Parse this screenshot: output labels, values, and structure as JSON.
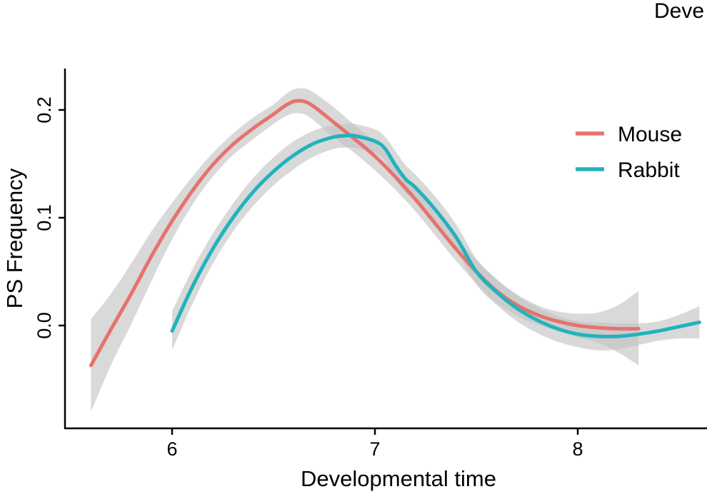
{
  "chart_data": {
    "type": "line",
    "title": "Deve",
    "xlabel": "Developmental time",
    "ylabel": "PS Frequency",
    "xlim": [
      5.47,
      8.63
    ],
    "ylim": [
      -0.094,
      0.235
    ],
    "xticks": [
      6,
      7,
      8
    ],
    "xtick_labels": [
      "6",
      "7",
      "8"
    ],
    "yticks": [
      0.0,
      0.1,
      0.2
    ],
    "ytick_labels": [
      "0.0",
      "0.1",
      "0.2"
    ],
    "grid": false,
    "legend_position": "right",
    "series": [
      {
        "name": "Mouse",
        "color": "#E5736C",
        "x": [
          5.6,
          5.7,
          5.8,
          5.9,
          6.0,
          6.1,
          6.2,
          6.3,
          6.4,
          6.5,
          6.55,
          6.6,
          6.65,
          6.7,
          6.8,
          6.9,
          7.0,
          7.1,
          7.2,
          7.3,
          7.4,
          7.5,
          7.6,
          7.7,
          7.8,
          7.9,
          8.0,
          8.1,
          8.2,
          8.3
        ],
        "y": [
          -0.037,
          -0.003,
          0.03,
          0.065,
          0.097,
          0.125,
          0.149,
          0.168,
          0.183,
          0.196,
          0.203,
          0.208,
          0.208,
          0.203,
          0.188,
          0.173,
          0.157,
          0.138,
          0.117,
          0.094,
          0.071,
          0.05,
          0.032,
          0.019,
          0.01,
          0.004,
          0.0,
          -0.002,
          -0.003,
          -0.003
        ],
        "ci_upper": [
          0.006,
          0.03,
          0.058,
          0.088,
          0.114,
          0.138,
          0.16,
          0.178,
          0.193,
          0.205,
          0.213,
          0.219,
          0.22,
          0.216,
          0.202,
          0.186,
          0.17,
          0.15,
          0.128,
          0.105,
          0.082,
          0.061,
          0.043,
          0.029,
          0.019,
          0.013,
          0.011,
          0.012,
          0.019,
          0.032
        ],
        "ci_lower": [
          -0.08,
          -0.036,
          0.002,
          0.042,
          0.08,
          0.112,
          0.138,
          0.158,
          0.173,
          0.187,
          0.193,
          0.197,
          0.196,
          0.19,
          0.174,
          0.16,
          0.144,
          0.126,
          0.106,
          0.083,
          0.06,
          0.039,
          0.021,
          0.009,
          0.001,
          -0.005,
          -0.011,
          -0.016,
          -0.025,
          -0.037
        ]
      },
      {
        "name": "Rabbit",
        "color": "#22B2BD",
        "x": [
          6.0,
          6.1,
          6.2,
          6.3,
          6.4,
          6.5,
          6.6,
          6.7,
          6.8,
          6.85,
          6.9,
          7.0,
          7.05,
          7.1,
          7.15,
          7.2,
          7.3,
          7.4,
          7.5,
          7.6,
          7.7,
          7.8,
          7.9,
          8.0,
          8.1,
          8.2,
          8.3,
          8.4,
          8.5,
          8.6
        ],
        "y": [
          -0.005,
          0.036,
          0.071,
          0.1,
          0.124,
          0.143,
          0.158,
          0.169,
          0.175,
          0.176,
          0.176,
          0.171,
          0.164,
          0.149,
          0.136,
          0.128,
          0.107,
          0.082,
          0.05,
          0.031,
          0.016,
          0.005,
          -0.003,
          -0.008,
          -0.01,
          -0.01,
          -0.008,
          -0.005,
          -0.001,
          0.003
        ],
        "ci_upper": [
          0.013,
          0.052,
          0.085,
          0.113,
          0.137,
          0.156,
          0.171,
          0.181,
          0.186,
          0.187,
          0.187,
          0.182,
          0.175,
          0.162,
          0.149,
          0.14,
          0.119,
          0.094,
          0.062,
          0.043,
          0.028,
          0.017,
          0.009,
          0.004,
          0.003,
          0.002,
          0.002,
          0.004,
          0.01,
          0.018
        ],
        "ci_lower": [
          -0.023,
          0.02,
          0.057,
          0.087,
          0.111,
          0.13,
          0.145,
          0.157,
          0.164,
          0.165,
          0.165,
          0.16,
          0.153,
          0.136,
          0.123,
          0.116,
          0.095,
          0.07,
          0.038,
          0.019,
          0.004,
          -0.007,
          -0.015,
          -0.02,
          -0.023,
          -0.022,
          -0.018,
          -0.014,
          -0.012,
          -0.012
        ]
      }
    ]
  }
}
